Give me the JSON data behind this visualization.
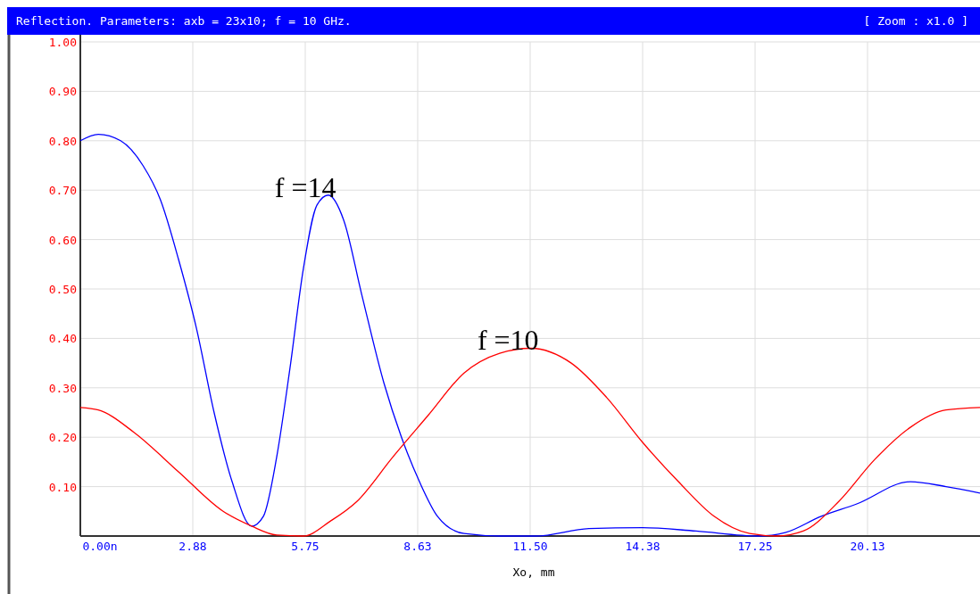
{
  "chart_data": {
    "type": "line",
    "title": "Reflection. Parameters: axb = 23x10; f = 10 GHz.",
    "subtitle": "[ Zoom : x1.0 ]",
    "xlabel": "Xo, mm",
    "xlim": [
      0,
      23
    ],
    "ylim": [
      0,
      1
    ],
    "xticks": [
      {
        "value": 0,
        "label": "0.00n"
      },
      {
        "value": 2.875,
        "label": "2.88"
      },
      {
        "value": 5.75,
        "label": "5.75"
      },
      {
        "value": 8.625,
        "label": "8.63"
      },
      {
        "value": 11.5,
        "label": "11.50"
      },
      {
        "value": 14.375,
        "label": "14.38"
      },
      {
        "value": 17.25,
        "label": "17.25"
      },
      {
        "value": 20.125,
        "label": "20.13"
      }
    ],
    "yticks": [
      {
        "value": 0.1,
        "label": "0.10"
      },
      {
        "value": 0.2,
        "label": "0.20"
      },
      {
        "value": 0.3,
        "label": "0.30"
      },
      {
        "value": 0.4,
        "label": "0.40"
      },
      {
        "value": 0.5,
        "label": "0.50"
      },
      {
        "value": 0.6,
        "label": "0.60"
      },
      {
        "value": 0.7,
        "label": "0.70"
      },
      {
        "value": 0.8,
        "label": "0.80"
      },
      {
        "value": 0.9,
        "label": "0.90"
      },
      {
        "value": 1,
        "label": "1.00"
      }
    ],
    "grid": true,
    "series": [
      {
        "color": "#0000ff",
        "x": [
          0,
          0.46,
          1.03,
          1.6,
          2.05,
          2.51,
          2.97,
          3.42,
          3.88,
          4.38,
          4.68,
          5.02,
          5.36,
          5.7,
          6.05,
          6.34,
          6.73,
          7.19,
          7.76,
          8.21,
          8.67,
          9.13,
          9.81,
          10.72,
          11.64,
          13.0,
          14.37,
          15.74,
          17.34,
          18.02,
          18.94,
          19.85,
          21.22,
          22.13,
          23
        ],
        "values": [
          0.8,
          0.813,
          0.8,
          0.75,
          0.68,
          0.56,
          0.42,
          0.25,
          0.11,
          0.02,
          0.04,
          0.16,
          0.34,
          0.54,
          0.67,
          0.69,
          0.64,
          0.49,
          0.31,
          0.2,
          0.11,
          0.04,
          0.005,
          0,
          0,
          0.015,
          0.017,
          0.01,
          0,
          0.007,
          0.04,
          0.065,
          0.11,
          0.1,
          0.087
        ]
      },
      {
        "color": "#ff0000",
        "x": [
          0,
          0.46,
          1.37,
          2.51,
          3.65,
          4.38,
          5.02,
          5.7,
          6.39,
          7.07,
          7.99,
          8.9,
          9.81,
          10.72,
          11.52,
          12.55,
          13.46,
          14.37,
          15.29,
          16.2,
          17.11,
          17.8,
          18.48,
          19.39,
          20.31,
          21.22,
          22.13,
          23
        ],
        "values": [
          0.26,
          0.255,
          0.21,
          0.13,
          0.05,
          0.02,
          0.002,
          0,
          0.03,
          0.07,
          0.16,
          0.245,
          0.33,
          0.37,
          0.38,
          0.35,
          0.28,
          0.19,
          0.11,
          0.04,
          0.005,
          0,
          0.01,
          0.07,
          0.155,
          0.22,
          0.255,
          0.26
        ]
      }
    ],
    "annotations": [
      {
        "text": "f =14",
        "x": 6.34,
        "y": 0.69
      },
      {
        "text": "f =10",
        "x": 11.52,
        "y": 0.38
      }
    ]
  }
}
